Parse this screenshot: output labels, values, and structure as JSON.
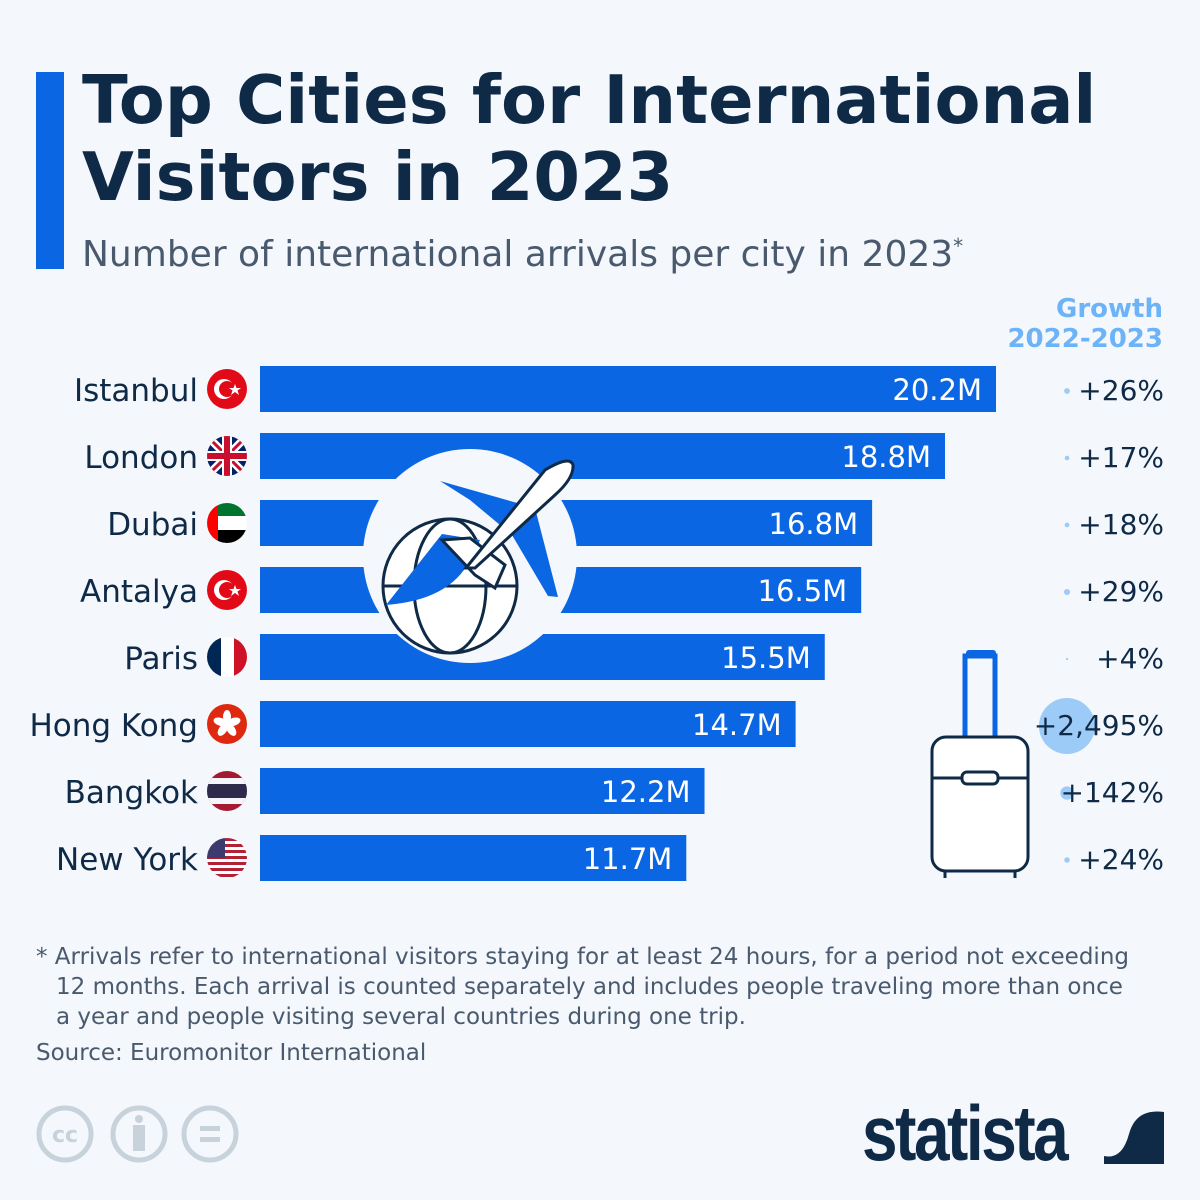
{
  "header": {
    "title_line1": "Top Cities for International",
    "title_line2": "Visitors in 2023",
    "subtitle": "Number of international arrivals per city in 2023",
    "subtitle_marker": "*"
  },
  "colors": {
    "bar": "#0b66e4",
    "bubble": "#9ccbf8",
    "growth_header": "#6cb4f7",
    "text": "#0f2a47"
  },
  "chart_data": {
    "type": "bar",
    "orientation": "horizontal",
    "title": "Top Cities for International Visitors in 2023",
    "categories": [
      "Istanbul",
      "London",
      "Dubai",
      "Antalya",
      "Paris",
      "Hong Kong",
      "Bangkok",
      "New York"
    ],
    "flags": [
      "turkey",
      "united-kingdom",
      "uae",
      "turkey",
      "france",
      "hong-kong",
      "thailand",
      "usa"
    ],
    "values": [
      20.2,
      18.8,
      16.8,
      16.5,
      15.5,
      14.7,
      12.2,
      11.7
    ],
    "value_labels": [
      "20.2M",
      "18.8M",
      "16.8M",
      "16.5M",
      "15.5M",
      "14.7M",
      "12.2M",
      "11.7M"
    ],
    "unit": "million arrivals",
    "growth": {
      "header_line1": "Growth",
      "header_line2": "2022-2023",
      "values": [
        26,
        17,
        18,
        29,
        4,
        2495,
        142,
        24
      ],
      "labels": [
        "+26%",
        "+17%",
        "+18%",
        "+29%",
        "+4%",
        "+2,495%",
        "+142%",
        "+24%"
      ]
    }
  },
  "footer": {
    "note_line1": "* Arrivals refer to international visitors staying for at least 24 hours, for a period not exceeding",
    "note_line2": "12 months. Each arrival is counted separately and includes people traveling more than once",
    "note_line3": "a year and people visiting several countries during one trip.",
    "source": "Source: Euromonitor International",
    "brand": "statista"
  },
  "icons": [
    "globe-plane-icon",
    "suitcase-icon",
    "cc-icon",
    "attribution-icon",
    "no-derivatives-icon",
    "statista-logo"
  ]
}
